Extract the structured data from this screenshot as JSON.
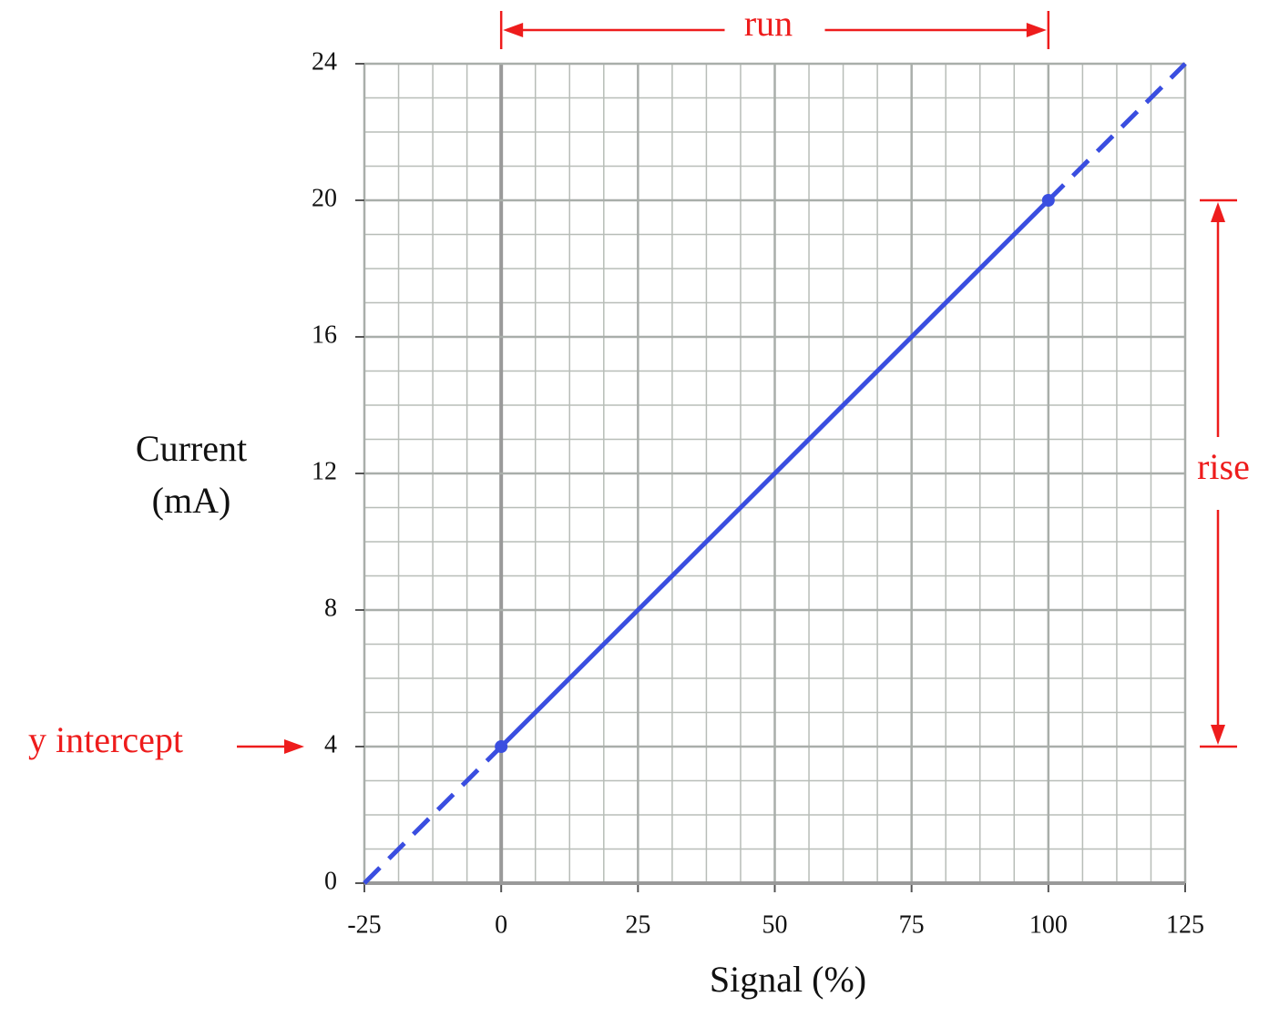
{
  "chart_data": {
    "type": "line",
    "xlabel": "Signal (%)",
    "ylabel": [
      "Current",
      "(mA)"
    ],
    "xlim": [
      -25,
      125
    ],
    "xticks": [
      -25,
      0,
      25,
      50,
      75,
      100,
      125
    ],
    "ylim": [
      0,
      24
    ],
    "yticks": [
      0,
      4,
      8,
      12,
      16,
      20,
      24
    ],
    "grid": true,
    "minor_divisions": {
      "x": 4,
      "y": 4
    },
    "series": [
      {
        "color": "#3a4ee0",
        "style": "dashed",
        "x": [
          -25,
          0
        ],
        "values": [
          0,
          4
        ]
      },
      {
        "color": "#3a4ee0",
        "style": "solid",
        "x": [
          0,
          100
        ],
        "values": [
          4,
          20
        ]
      },
      {
        "color": "#3a4ee0",
        "style": "dashed",
        "x": [
          100,
          125
        ],
        "values": [
          20,
          24
        ]
      }
    ],
    "points": {
      "color": "#3a4ee0",
      "x": [
        0,
        100
      ],
      "values": [
        4,
        20
      ]
    },
    "annotations": [
      {
        "text": "run",
        "x": [
          0,
          100
        ],
        "color": "#ee1c1c"
      },
      {
        "text": "rise",
        "y": [
          4,
          20
        ],
        "color": "#ee1c1c"
      },
      {
        "text": "y intercept",
        "y": 4,
        "color": "#ee1c1c"
      }
    ]
  }
}
